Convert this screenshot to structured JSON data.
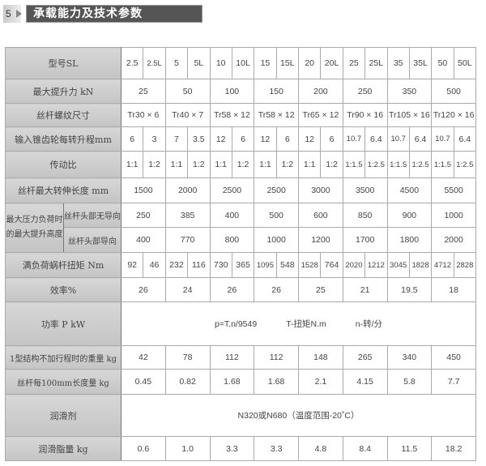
{
  "header": {
    "section_number": "5",
    "title": "承载能力及技术参数 >>>>>>"
  },
  "table": {
    "rows": [
      {
        "label": "型号SL",
        "span": 1,
        "cells": [
          "2.5",
          "2.5L",
          "5",
          "5L",
          "10",
          "10L",
          "15",
          "15L",
          "20",
          "20L",
          "25",
          "25L",
          "35",
          "35L",
          "50",
          "50L"
        ]
      },
      {
        "label": "最大提升力 kN",
        "span": 2,
        "cells": [
          "25",
          "50",
          "100",
          "150",
          "200",
          "250",
          "350",
          "500"
        ]
      },
      {
        "label": "丝杆螺纹尺寸",
        "span": 2,
        "cells": [
          "Tr30 × 6",
          "Tr40 × 7",
          "Tr58 × 12",
          "Tr58 × 12",
          "Tr65 × 12",
          "Tr90 × 16",
          "Tr105 × 16",
          "Tr120 × 16"
        ]
      },
      {
        "label": "输入锥齿轮每转升程mm",
        "span": 1,
        "cells": [
          "6",
          "3",
          "7",
          "3.5",
          "12",
          "6",
          "12",
          "6",
          "12",
          "6",
          "10.7",
          "6.4",
          "10.7",
          "6.4",
          "10.7",
          "6.4"
        ]
      },
      {
        "label": "传动比",
        "span": 1,
        "cells": [
          "1:1",
          "1:2",
          "1:1",
          "1:2",
          "1:1",
          "1:2",
          "1:1",
          "1:2",
          "1:1",
          "1:2",
          "1:1.5",
          "1:2.5",
          "1:1.5",
          "1:2.5",
          "1:1.5",
          "1:2.5"
        ]
      },
      {
        "label": "丝杆最大转伸长度 mm",
        "span": 2,
        "cells": [
          "1500",
          "2000",
          "2500",
          "2500",
          "3000",
          "3500",
          "4500",
          "5500"
        ]
      },
      {
        "group": "最大压力负荷时的最大提升高度",
        "label": "丝杆头部无导向",
        "span": 2,
        "cells": [
          "250",
          "385",
          "400",
          "500",
          "600",
          "850",
          "900",
          "1000"
        ]
      },
      {
        "group": "最大压力负荷时的最大提升高度",
        "label": "丝杆头部导向",
        "span": 2,
        "cells": [
          "400",
          "770",
          "800",
          "1000",
          "1200",
          "1700",
          "1800",
          "2000"
        ]
      },
      {
        "label": "满负荷蜗杆扭矩 Nm",
        "span": 1,
        "cells": [
          "92",
          "46",
          "232",
          "116",
          "730",
          "365",
          "1095",
          "548",
          "1528",
          "764",
          "2020",
          "1212",
          "3045",
          "1828",
          "4712",
          "2828"
        ]
      },
      {
        "label": "效率%",
        "span": 2,
        "cells": [
          "26",
          "24",
          "26",
          "26",
          "25",
          "21",
          "19.5",
          "18"
        ]
      },
      {
        "label": "功率 P kW",
        "span": 16,
        "cells": [
          "p=T.n/9549",
          "T-扭矩N.m",
          "n-转/分"
        ]
      },
      {
        "label": "1型结构不加行程时的重量 kg",
        "span": 2,
        "cells": [
          "42",
          "78",
          "112",
          "112",
          "148",
          "265",
          "340",
          "450"
        ]
      },
      {
        "label": "丝杆每100mm长度量 kg",
        "span": 2,
        "cells": [
          "0.45",
          "0.82",
          "1.68",
          "1.68",
          "2.1",
          "4.15",
          "5.8",
          "7.7"
        ]
      },
      {
        "label": "润滑剂",
        "span": 16,
        "cells": [
          "N320或N680（温度范围-20˚C）"
        ]
      },
      {
        "label": "润滑脂量 kg",
        "span": 2,
        "cells": [
          "0.6",
          "1.0",
          "3.3",
          "3.3",
          "4.8",
          "8.4",
          "11.5",
          "18.2"
        ]
      }
    ]
  }
}
